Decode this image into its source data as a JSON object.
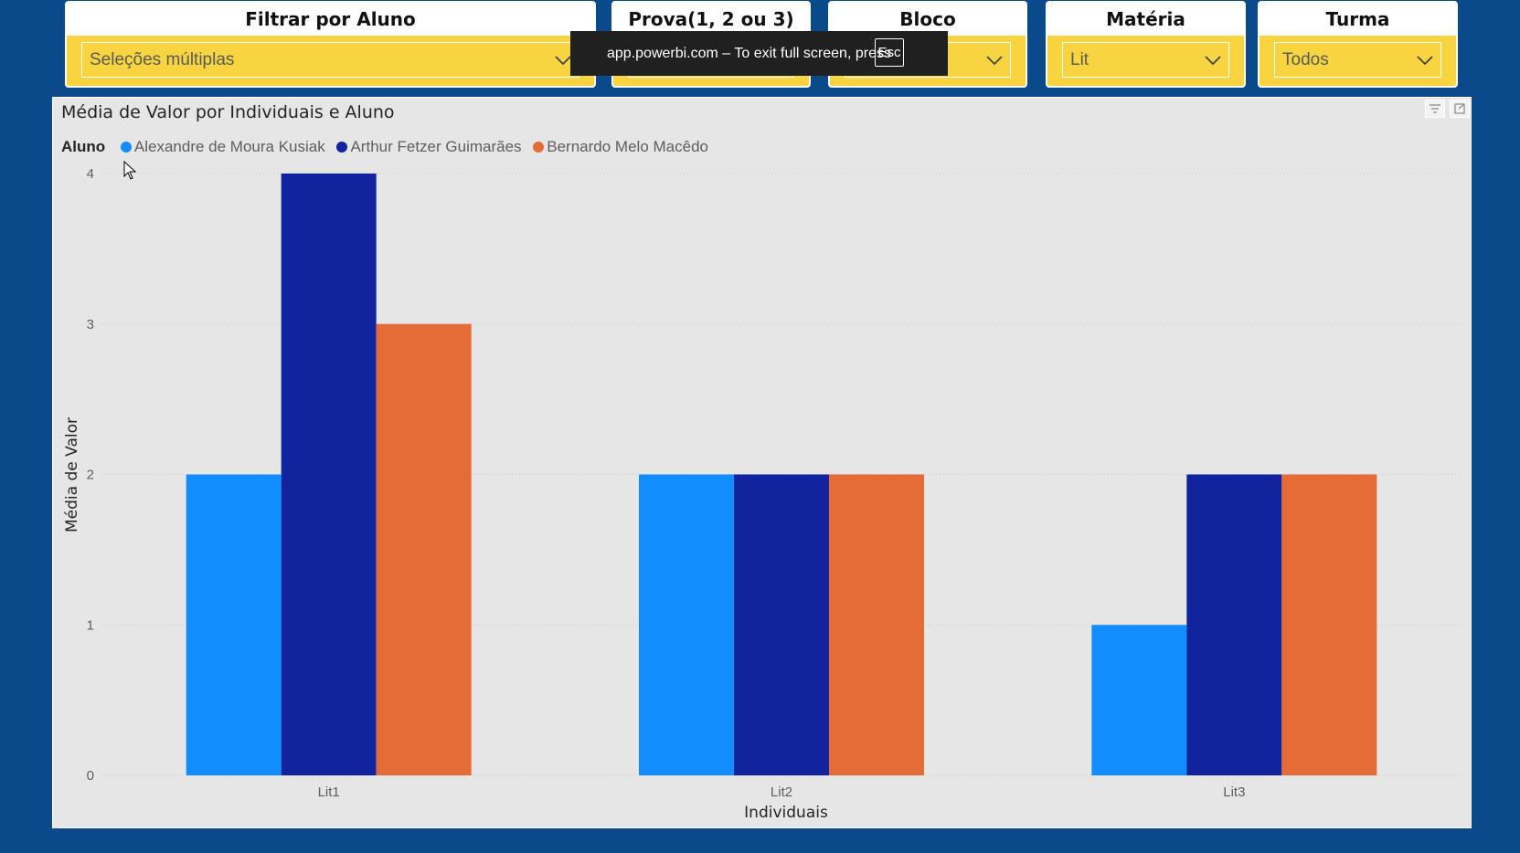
{
  "slicers": [
    {
      "title": "Filtrar por Aluno",
      "value": "Seleções múltiplas"
    },
    {
      "title": "Prova(1, 2 ou 3)",
      "value": ""
    },
    {
      "title": "Bloco",
      "value": ""
    },
    {
      "title": "Matéria",
      "value": "Lit"
    },
    {
      "title": "Turma",
      "value": "Todos"
    }
  ],
  "toast": {
    "message": "app.powerbi.com – To exit full screen, press",
    "key": "Esc"
  },
  "chart_data": {
    "type": "bar",
    "title": "Média de Valor por Individuais e Aluno",
    "legend_title": "Aluno",
    "legend_position": "top-left",
    "xlabel": "Individuais",
    "ylabel": "Média de Valor",
    "categories": [
      "Lit1",
      "Lit2",
      "Lit3"
    ],
    "ylim": [
      0,
      4
    ],
    "yticks": [
      "0",
      "1",
      "2",
      "3",
      "4"
    ],
    "grid": true,
    "series": [
      {
        "name": "Alexandre de Moura Kusiak",
        "color": "#118dff",
        "values": [
          2,
          2,
          1
        ]
      },
      {
        "name": "Arthur Fetzer Guimarães",
        "color": "#12239e",
        "values": [
          4,
          2,
          2
        ]
      },
      {
        "name": "Bernardo Melo Macêdo",
        "color": "#e66c37",
        "values": [
          3,
          2,
          2
        ]
      }
    ]
  },
  "icons": {
    "dropdown": "chevron-down-icon",
    "filter": "filter-icon",
    "focus": "focus-mode-icon",
    "cursor": "mouse-pointer-icon"
  }
}
